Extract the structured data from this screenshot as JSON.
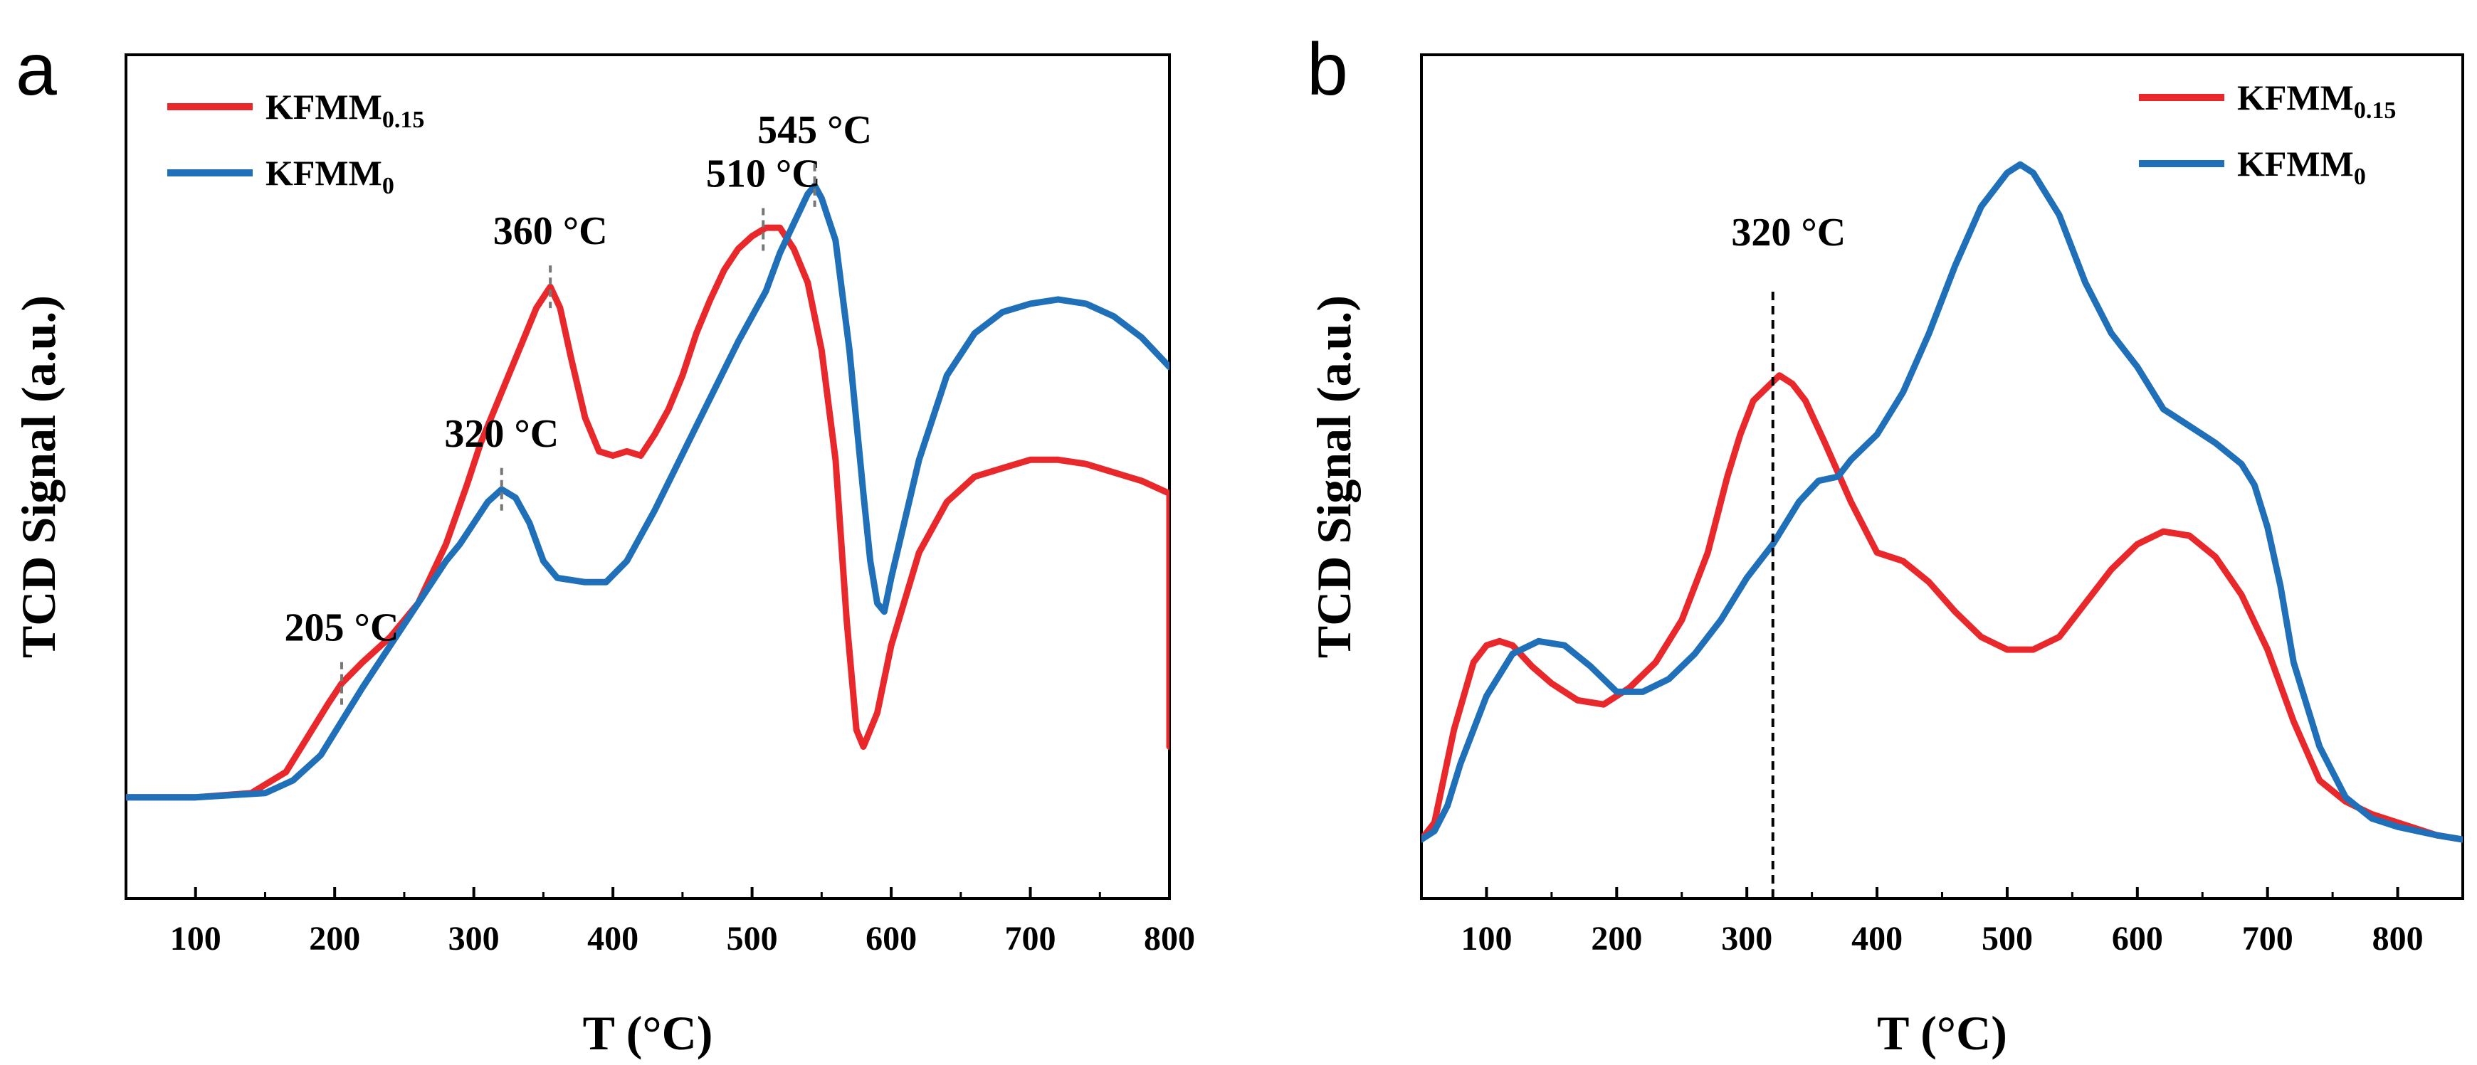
{
  "chart_data": [
    {
      "type": "line",
      "panel_label": "a",
      "title": "",
      "xlabel": "T (°C)",
      "ylabel": "TCD Signal (a.u.)",
      "xlim": [
        50,
        800
      ],
      "ylim": [
        0,
        100
      ],
      "xticks": [
        "100",
        "200",
        "300",
        "400",
        "500",
        "600",
        "700",
        "800"
      ],
      "legend_position": "top-left",
      "series": [
        {
          "name": "KFMM",
          "subscript": "0.15",
          "color": "#e8282b",
          "x": [
            50,
            100,
            140,
            165,
            180,
            195,
            205,
            220,
            240,
            260,
            280,
            295,
            305,
            315,
            325,
            335,
            345,
            355,
            362,
            370,
            380,
            390,
            400,
            410,
            420,
            430,
            440,
            450,
            460,
            470,
            480,
            490,
            500,
            510,
            520,
            530,
            540,
            550,
            560,
            568,
            575,
            580,
            590,
            600,
            620,
            640,
            660,
            680,
            700,
            720,
            740,
            760,
            780,
            800,
            800
          ],
          "y": [
            12,
            12,
            12.5,
            15,
            19,
            23,
            25.5,
            28,
            31,
            35,
            42,
            49,
            54,
            58,
            62,
            66,
            70,
            72.5,
            70,
            64,
            57,
            53,
            52.5,
            53,
            52.5,
            55,
            58,
            62,
            67,
            71,
            74.5,
            77,
            78.5,
            79.5,
            79.5,
            77,
            73,
            65,
            52,
            33,
            20,
            18,
            22,
            30,
            41,
            47,
            50,
            51,
            52,
            52,
            51.5,
            50.5,
            49.5,
            48,
            18
          ]
        },
        {
          "name": "KFMM",
          "subscript": "0",
          "color": "#1f70b8",
          "x": [
            50,
            100,
            150,
            170,
            190,
            205,
            220,
            240,
            260,
            280,
            290,
            300,
            310,
            320,
            330,
            340,
            350,
            360,
            380,
            395,
            410,
            430,
            460,
            490,
            510,
            520,
            530,
            540,
            545,
            550,
            560,
            570,
            580,
            585,
            590,
            595,
            600,
            620,
            640,
            660,
            680,
            700,
            720,
            740,
            760,
            780,
            800
          ],
          "y": [
            12,
            12,
            12.5,
            14,
            17,
            21,
            25,
            30,
            35,
            40,
            42,
            44.5,
            47,
            48.5,
            47.5,
            44.5,
            40,
            38,
            37.5,
            37.5,
            40,
            46,
            56,
            66,
            72,
            76.5,
            80,
            83.5,
            84.5,
            83,
            78,
            65,
            48,
            40,
            35,
            34,
            38,
            52,
            62,
            67,
            69.5,
            70.5,
            71,
            70.5,
            69,
            66.5,
            63
          ]
        }
      ],
      "annotations": [
        {
          "label": "205 °C",
          "x": 205,
          "series": 0
        },
        {
          "label": "320 °C",
          "x": 320,
          "series": 1
        },
        {
          "label": "360 °C",
          "x": 355,
          "series": 0
        },
        {
          "label": "510 °C",
          "x": 508,
          "series": 0
        },
        {
          "label": "545 °C",
          "x": 545,
          "series": 1
        }
      ]
    },
    {
      "type": "line",
      "panel_label": "b",
      "title": "",
      "xlabel": "T (°C)",
      "ylabel": "TCD Signal (a.u.)",
      "xlim": [
        50,
        850
      ],
      "ylim": [
        0,
        100
      ],
      "xticks": [
        "100",
        "200",
        "300",
        "400",
        "500",
        "600",
        "700",
        "800"
      ],
      "legend_position": "top-right",
      "series": [
        {
          "name": "KFMM",
          "subscript": "0.15",
          "color": "#e8282b",
          "x": [
            50,
            60,
            75,
            90,
            100,
            110,
            120,
            135,
            150,
            170,
            190,
            210,
            230,
            250,
            270,
            285,
            295,
            305,
            315,
            325,
            335,
            345,
            360,
            380,
            400,
            420,
            440,
            460,
            480,
            500,
            520,
            540,
            560,
            580,
            600,
            620,
            640,
            660,
            680,
            700,
            720,
            740,
            760,
            780,
            800,
            830,
            850
          ],
          "y": [
            7,
            9,
            20,
            28,
            30,
            30.5,
            30,
            27.5,
            25.5,
            23.5,
            23,
            25,
            28,
            33,
            41,
            50,
            55,
            59,
            60.5,
            62,
            61,
            59,
            54,
            47,
            41,
            40,
            37.5,
            34,
            31,
            29.5,
            29.5,
            31,
            35,
            39,
            42,
            43.5,
            43,
            40.5,
            36,
            29.5,
            21,
            14,
            11.5,
            10,
            9,
            7.5,
            7
          ]
        },
        {
          "name": "KFMM",
          "subscript": "0",
          "color": "#1f70b8",
          "x": [
            50,
            60,
            70,
            80,
            100,
            120,
            140,
            160,
            180,
            200,
            220,
            240,
            260,
            280,
            300,
            320,
            340,
            355,
            370,
            380,
            400,
            420,
            440,
            460,
            480,
            500,
            510,
            520,
            540,
            560,
            580,
            600,
            620,
            640,
            660,
            680,
            690,
            700,
            710,
            720,
            740,
            760,
            780,
            800,
            830,
            850
          ],
          "y": [
            7,
            8,
            11,
            16,
            24,
            29,
            30.5,
            30,
            27.5,
            24.5,
            24.5,
            26,
            29,
            33,
            38,
            42,
            47,
            49.5,
            50,
            52,
            55,
            60,
            67,
            75,
            82,
            86,
            87,
            86,
            81,
            73,
            67,
            63,
            58,
            56,
            54,
            51.5,
            49,
            44,
            37,
            28,
            18,
            12,
            9.5,
            8.5,
            7.5,
            7
          ]
        }
      ],
      "annotations": [
        {
          "label": "320 °C",
          "x": 320,
          "series": 0
        }
      ]
    }
  ]
}
